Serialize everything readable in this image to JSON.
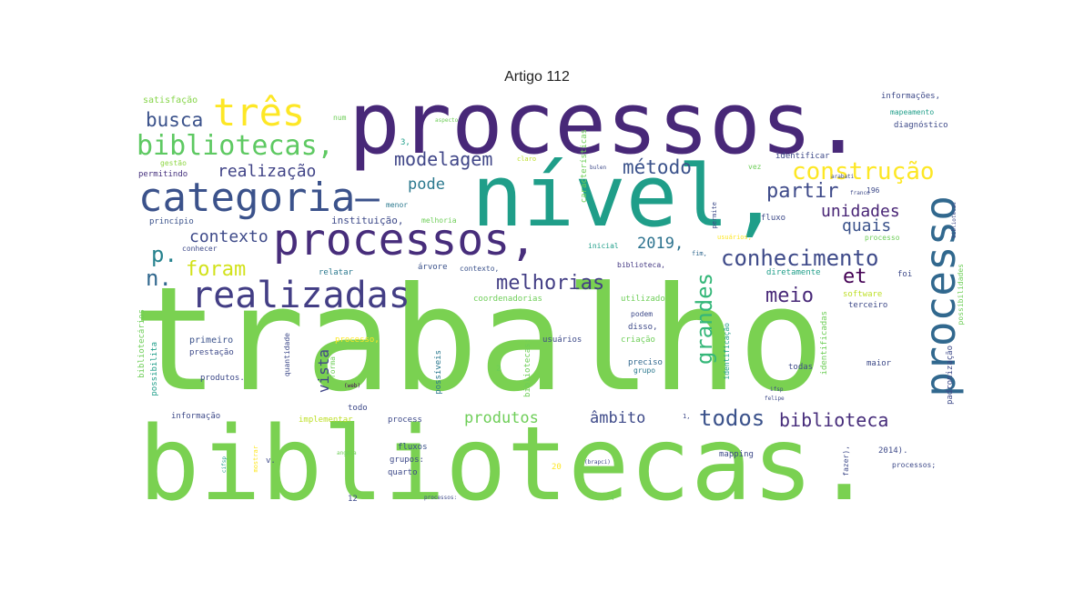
{
  "title": "Artigo 112",
  "palette": {
    "dark_purple": "#482878",
    "purple": "#440154",
    "indigo": "#3e4a89",
    "teal": "#1f9e89",
    "blue_teal": "#26828e",
    "green": "#6ece58",
    "light_green": "#b5de2b",
    "yellow": "#fde725",
    "slate": "#31688e"
  },
  "words": [
    {
      "text": "trabalho",
      "color": "#7ad151"
    },
    {
      "text": "bibliotecas.",
      "color": "#7ad151"
    },
    {
      "text": "processos.",
      "color": "#482878"
    },
    {
      "text": "nível,",
      "color": "#1f9e89"
    },
    {
      "text": "processos,",
      "color": "#472d7b"
    },
    {
      "text": "categoria—",
      "color": "#3b528b"
    },
    {
      "text": "processo",
      "color": "#31688e"
    },
    {
      "text": "realizadas",
      "color": "#433e85"
    },
    {
      "text": "bibliotecas,",
      "color": "#5ec962"
    },
    {
      "text": "três",
      "color": "#fde725"
    },
    {
      "text": "construção",
      "color": "#fde725"
    },
    {
      "text": "conhecimento",
      "color": "#3e4a89"
    },
    {
      "text": "melhorias",
      "color": "#433e85"
    },
    {
      "text": "grandes",
      "color": "#35b779"
    },
    {
      "text": "modelagem",
      "color": "#404688"
    },
    {
      "text": "método",
      "color": "#3b528b"
    },
    {
      "text": "busca",
      "color": "#3b528b"
    },
    {
      "text": "partir",
      "color": "#3e4a89"
    },
    {
      "text": "unidades",
      "color": "#482475"
    },
    {
      "text": "quais",
      "color": "#3b528b"
    },
    {
      "text": "realização",
      "color": "#414487"
    },
    {
      "text": "contexto",
      "color": "#3e4a89"
    },
    {
      "text": "pode",
      "color": "#2a788e"
    },
    {
      "text": "foram",
      "color": "#d2e21b"
    },
    {
      "text": "2019,",
      "color": "#2c728e"
    },
    {
      "text": "p.",
      "color": "#26828e"
    },
    {
      "text": "n.",
      "color": "#31688e"
    },
    {
      "text": "et",
      "color": "#440154"
    },
    {
      "text": "meio",
      "color": "#482878"
    },
    {
      "text": "todos",
      "color": "#3b528b"
    },
    {
      "text": "biblioteca",
      "color": "#472d7b"
    },
    {
      "text": "âmbito",
      "color": "#3e4a89"
    },
    {
      "text": "produtos",
      "color": "#6ece58"
    },
    {
      "text": "vista",
      "color": "#404688"
    },
    {
      "text": "satisfação",
      "color": "#86d549"
    },
    {
      "text": "num",
      "color": "#6ece58"
    },
    {
      "text": "3,",
      "color": "#1f9e89"
    },
    {
      "text": "aspecto",
      "color": "#6ece58"
    },
    {
      "text": "características",
      "color": "#6ece58"
    },
    {
      "text": "gestão",
      "color": "#8fd744"
    },
    {
      "text": "claro",
      "color": "#bddf26"
    },
    {
      "text": "permitindo",
      "color": "#46327e"
    },
    {
      "text": "menor",
      "color": "#2a788e"
    },
    {
      "text": "princípio",
      "color": "#3b528b"
    },
    {
      "text": "instituição,",
      "color": "#3e4a89"
    },
    {
      "text": "melhoria",
      "color": "#6ece58"
    },
    {
      "text": "conhecer",
      "color": "#3e4a89"
    },
    {
      "text": "relatar",
      "color": "#2a788e"
    },
    {
      "text": "árvore",
      "color": "#3b528b"
    },
    {
      "text": "contexto,",
      "color": "#3b528b"
    },
    {
      "text": "coordenadorias",
      "color": "#6ece58"
    },
    {
      "text": "inicial",
      "color": "#1f9e89"
    },
    {
      "text": "biblioteca,",
      "color": "#443983"
    },
    {
      "text": "fim,",
      "color": "#31688e"
    },
    {
      "text": "utilizado",
      "color": "#6ece58"
    },
    {
      "text": "podem",
      "color": "#3e4a89"
    },
    {
      "text": "disso,",
      "color": "#3e4a89"
    },
    {
      "text": "primeiro",
      "color": "#3b528b"
    },
    {
      "text": "prestação",
      "color": "#3e4a89"
    },
    {
      "text": "produtos.",
      "color": "#3e4a89"
    },
    {
      "text": "processo,",
      "color": "#fde725"
    },
    {
      "text": "forma",
      "color": "#6ece58"
    },
    {
      "text": "possíveis",
      "color": "#2a788e"
    },
    {
      "text": "bibliotecas:",
      "color": "#6ece58"
    },
    {
      "text": "usuários",
      "color": "#3e4a89"
    },
    {
      "text": "criação",
      "color": "#6ece58"
    },
    {
      "text": "preciso",
      "color": "#31688e"
    },
    {
      "text": "grupo",
      "color": "#2a788e"
    },
    {
      "text": "identificação",
      "color": "#1f9e89"
    },
    {
      "text": "informação",
      "color": "#3e4a89"
    },
    {
      "text": "todo",
      "color": "#3e4a89"
    },
    {
      "text": "implementar",
      "color": "#bddf26"
    },
    {
      "text": "process",
      "color": "#3e4a89"
    },
    {
      "text": "fluxos",
      "color": "#3b528b"
    },
    {
      "text": "grupos:",
      "color": "#3e4a89"
    },
    {
      "text": "quarto",
      "color": "#3e4a89"
    },
    {
      "text": "mapping",
      "color": "#3e4a89"
    },
    {
      "text": "mostrar",
      "color": "#fde725"
    },
    {
      "text": "v.",
      "color": "#3e4a89"
    },
    {
      "text": "20",
      "color": "#fde725"
    },
    {
      "text": "12",
      "color": "#3e4a89"
    },
    {
      "text": "4",
      "color": "#6ece58"
    },
    {
      "text": "2014).",
      "color": "#3e4a89"
    },
    {
      "text": "processos;",
      "color": "#3e4a89"
    },
    {
      "text": "fazer),",
      "color": "#3e4a89"
    },
    {
      "text": "informações,",
      "color": "#3e4a89"
    },
    {
      "text": "mapeamento",
      "color": "#1f9e89"
    },
    {
      "text": "diagnóstico",
      "color": "#3e4a89"
    },
    {
      "text": "identificar",
      "color": "#3e4a89"
    },
    {
      "text": "vez",
      "color": "#6ece58"
    },
    {
      "text": "196",
      "color": "#3e4a89"
    },
    {
      "text": "fluxo",
      "color": "#3e4a89"
    },
    {
      "text": "permite",
      "color": "#3e4a89"
    },
    {
      "text": "usuários,",
      "color": "#fde725"
    },
    {
      "text": "processo",
      "color": "#6ece58"
    },
    {
      "text": "diretamente",
      "color": "#1f9e89"
    },
    {
      "text": "foi",
      "color": "#3e4a89"
    },
    {
      "text": "software",
      "color": "#bddf26"
    },
    {
      "text": "terceiro",
      "color": "#3e4a89"
    },
    {
      "text": "maior",
      "color": "#3e4a89"
    },
    {
      "text": "todas",
      "color": "#3e4a89"
    },
    {
      "text": "bibliotecários",
      "color": "#6ece58"
    },
    {
      "text": "possibilita",
      "color": "#1f9e89"
    },
    {
      "text": "quantidade",
      "color": "#3e4a89"
    },
    {
      "text": "padronização",
      "color": "#3e4a89"
    },
    {
      "text": "identificadas",
      "color": "#6ece58"
    },
    {
      "text": "possibilidades",
      "color": "#6ece58"
    },
    {
      "text": "2",
      "color": "#6ece58"
    },
    {
      "text": "1,",
      "color": "#3e4a89"
    },
    {
      "text": "felipe",
      "color": "#3e4a89"
    },
    {
      "text": "ifsp",
      "color": "#3e4a89"
    },
    {
      "text": "(web)",
      "color": "#440154"
    },
    {
      "text": "angela",
      "color": "#6ece58"
    },
    {
      "text": "cifsp",
      "color": "#1f9e89"
    },
    {
      "text": "bulen",
      "color": "#3e4a89"
    },
    {
      "text": "arabati",
      "color": "#3e4a89"
    },
    {
      "text": "franco",
      "color": "#3e4a89"
    },
    {
      "text": "bibliotecas",
      "color": "#3e4a89"
    },
    {
      "text": "(brapci)",
      "color": "#3e4a89"
    },
    {
      "text": "processos:",
      "color": "#3e4a89"
    }
  ]
}
